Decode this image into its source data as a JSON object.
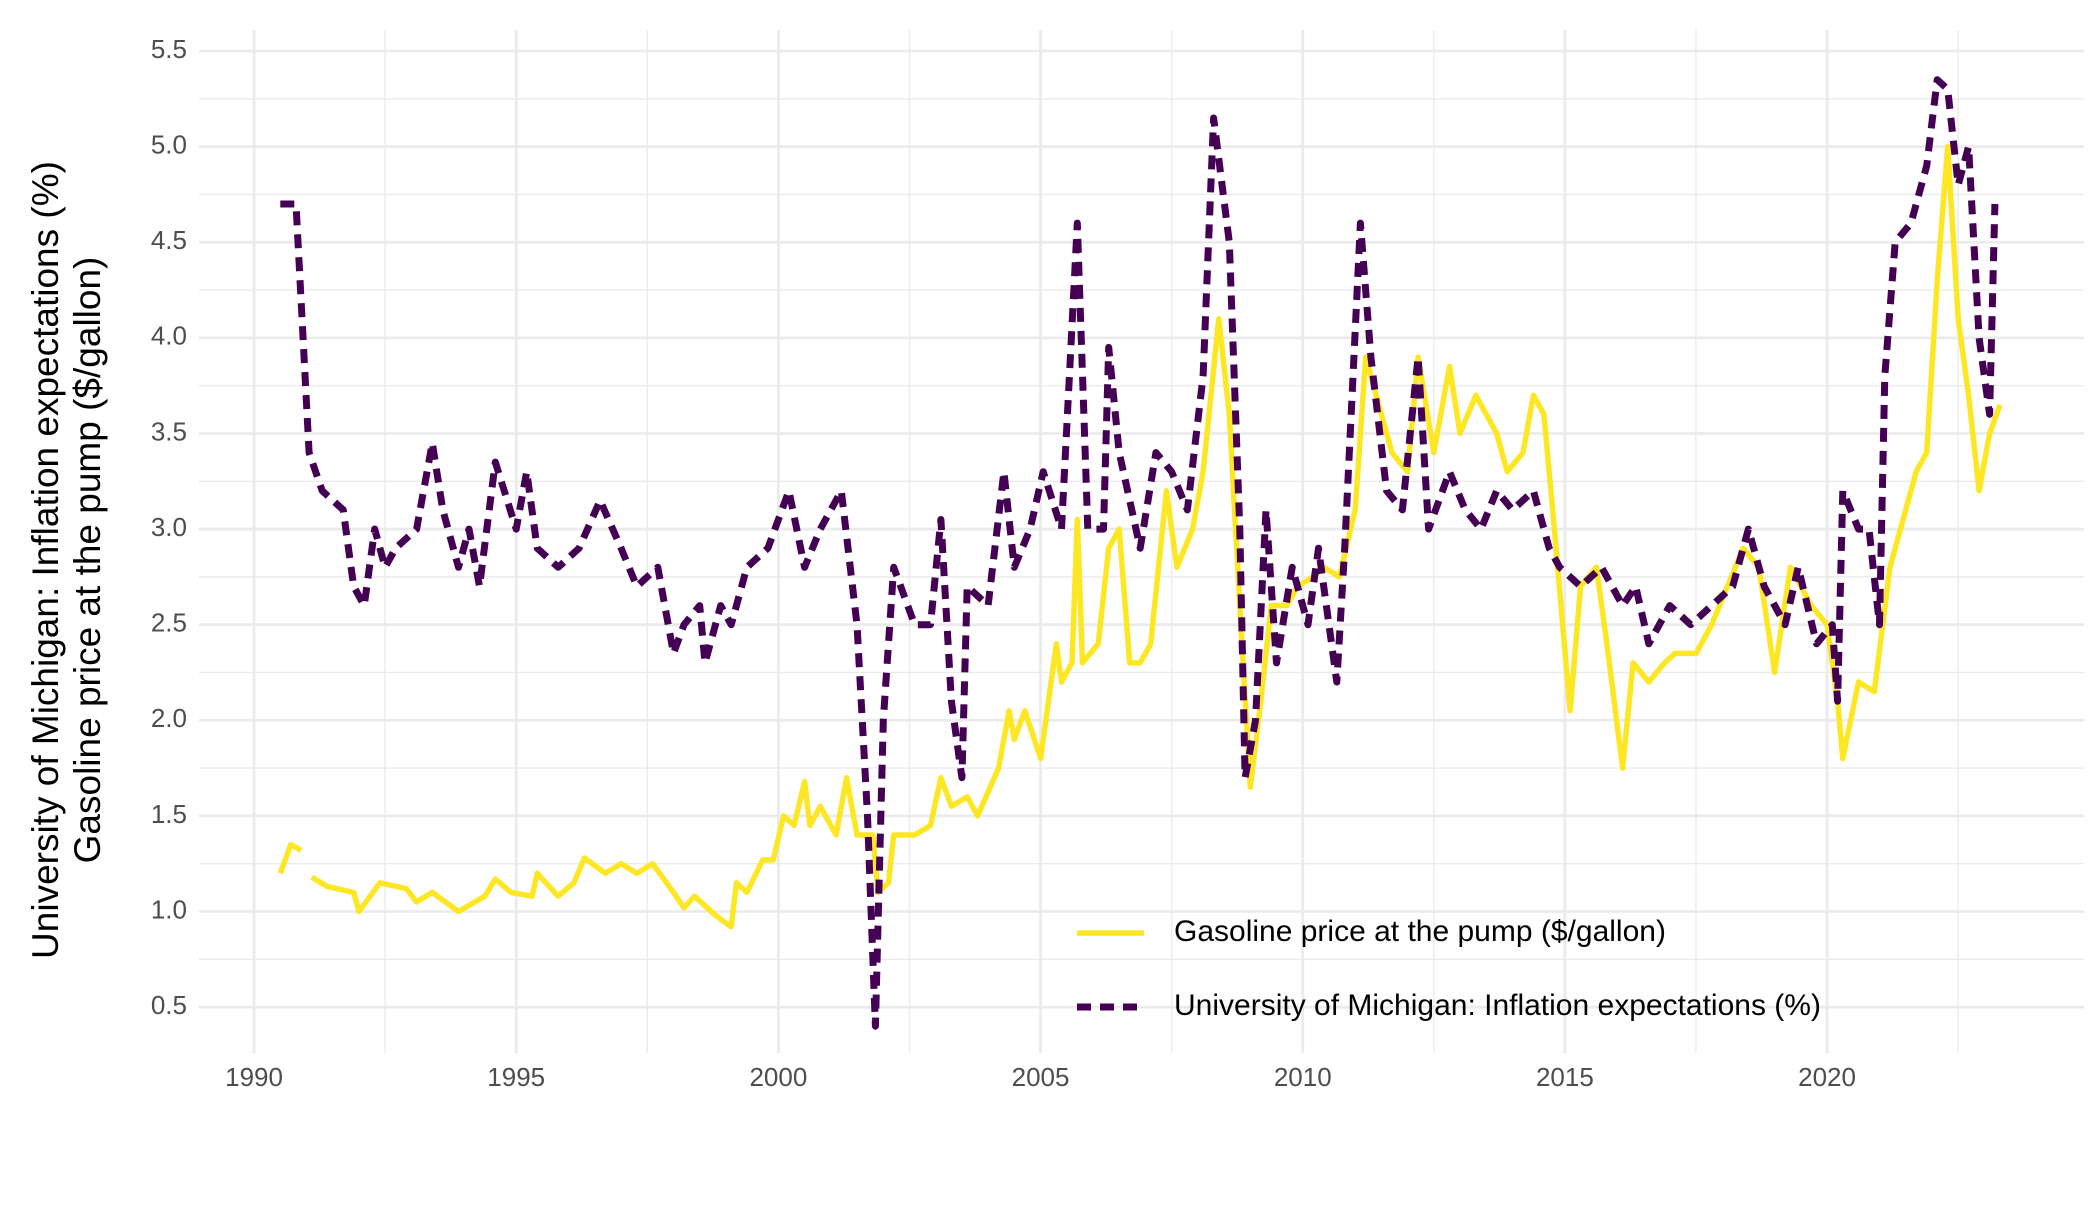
{
  "chart_data": {
    "type": "line",
    "ylabel": [
      "University of Michigan: Inflation expectations (%)",
      "Gasoline price at the pump ($/gallon)"
    ],
    "xlim": [
      1988.95,
      2024.9
    ],
    "ylim": [
      0.26,
      5.61
    ],
    "xticks": [
      1990,
      1995,
      2000,
      2005,
      2010,
      2015,
      2020
    ],
    "yticks": [
      {
        "value": 0.5,
        "label": "0.5"
      },
      {
        "value": 1,
        "label": "1.0"
      },
      {
        "value": 1.5,
        "label": "1.5"
      },
      {
        "value": 2,
        "label": "2.0"
      },
      {
        "value": 2.5,
        "label": "2.5"
      },
      {
        "value": 3,
        "label": "3.0"
      },
      {
        "value": 3.5,
        "label": "3.5"
      },
      {
        "value": 4,
        "label": "4.0"
      },
      {
        "value": 4.5,
        "label": "4.5"
      },
      {
        "value": 5,
        "label": "5.0"
      },
      {
        "value": 5.5,
        "label": "5.5"
      }
    ],
    "grid": true,
    "legend": "bottom-right",
    "series": [
      {
        "name": "Gasoline price at the pump ($/gallon)",
        "color": "#fde725",
        "dash": false,
        "x": [
          1990.5,
          1990.7,
          1990.9,
          1991.0,
          1991.1,
          1991.4,
          1991.9,
          1992.0,
          1992.4,
          1992.9,
          1993.1,
          1993.4,
          1993.9,
          1994.4,
          1994.6,
          1994.9,
          1995.3,
          1995.4,
          1995.8,
          1996.1,
          1996.3,
          1996.7,
          1997.0,
          1997.3,
          1997.6,
          1998.0,
          1998.2,
          1998.4,
          1998.8,
          1999.1,
          1999.2,
          1999.4,
          1999.7,
          1999.9,
          2000.1,
          2000.3,
          2000.5,
          2000.6,
          2000.8,
          2001.1,
          2001.3,
          2001.5,
          2001.8,
          2001.9,
          2002.1,
          2002.2,
          2002.6,
          2002.9,
          2003.1,
          2003.3,
          2003.6,
          2003.8,
          2004.2,
          2004.4,
          2004.5,
          2004.7,
          2005.0,
          2005.2,
          2005.3,
          2005.4,
          2005.6,
          2005.7,
          2005.8,
          2006.1,
          2006.3,
          2006.5,
          2006.7,
          2006.9,
          2007.1,
          2007.4,
          2007.6,
          2007.9,
          2008.1,
          2008.4,
          2008.6,
          2008.8,
          2009.0,
          2009.2,
          2009.4,
          2009.7,
          2009.9,
          2010.2,
          2010.4,
          2010.7,
          2011.0,
          2011.2,
          2011.5,
          2011.7,
          2012.0,
          2012.2,
          2012.5,
          2012.8,
          2013.0,
          2013.3,
          2013.7,
          2013.9,
          2014.2,
          2014.4,
          2014.6,
          2014.8,
          2015.1,
          2015.3,
          2015.6,
          2015.8,
          2016.1,
          2016.3,
          2016.6,
          2016.9,
          2017.1,
          2017.5,
          2017.8,
          2018.1,
          2018.4,
          2018.7,
          2019.0,
          2019.3,
          2019.7,
          2020.0,
          2020.2,
          2020.3,
          2020.6,
          2020.9,
          2021.2,
          2021.5,
          2021.7,
          2021.9,
          2022.1,
          2022.3,
          2022.5,
          2022.7,
          2022.9,
          2023.1,
          2023.3
        ],
        "values": [
          1.2,
          1.35,
          1.32,
          null,
          1.18,
          1.13,
          1.1,
          1.0,
          1.15,
          1.12,
          1.05,
          1.1,
          1.0,
          1.08,
          1.17,
          1.1,
          1.08,
          1.2,
          1.08,
          1.15,
          1.28,
          1.2,
          1.25,
          1.2,
          1.25,
          1.1,
          1.02,
          1.08,
          0.98,
          0.92,
          1.15,
          1.1,
          1.27,
          1.27,
          1.5,
          1.45,
          1.68,
          1.45,
          1.55,
          1.4,
          1.7,
          1.4,
          1.4,
          1.1,
          1.15,
          1.4,
          1.4,
          1.45,
          1.7,
          1.55,
          1.6,
          1.5,
          1.75,
          2.05,
          1.9,
          2.05,
          1.8,
          2.2,
          2.4,
          2.2,
          2.3,
          3.05,
          2.3,
          2.4,
          2.9,
          3.0,
          2.3,
          2.3,
          2.4,
          3.2,
          2.8,
          3.0,
          3.3,
          4.1,
          3.6,
          2.6,
          1.65,
          2.1,
          2.6,
          2.6,
          2.7,
          2.75,
          2.8,
          2.75,
          3.1,
          3.9,
          3.6,
          3.4,
          3.3,
          3.9,
          3.4,
          3.85,
          3.5,
          3.7,
          3.5,
          3.3,
          3.4,
          3.7,
          3.6,
          3.0,
          2.05,
          2.7,
          2.8,
          2.4,
          1.75,
          2.3,
          2.2,
          2.3,
          2.35,
          2.35,
          2.5,
          2.7,
          2.9,
          2.8,
          2.25,
          2.8,
          2.6,
          2.5,
          2.1,
          1.8,
          2.2,
          2.15,
          2.8,
          3.1,
          3.3,
          3.4,
          4.3,
          5.0,
          4.1,
          3.7,
          3.2,
          3.5,
          3.65
        ]
      },
      {
        "name": "University of Michigan: Inflation expectations (%)",
        "color": "#440154",
        "dash": true,
        "x": [
          1990.5,
          1990.8,
          1991.05,
          1991.3,
          1991.7,
          1991.9,
          1992.1,
          1992.3,
          1992.5,
          1992.7,
          1993.1,
          1993.4,
          1993.6,
          1993.9,
          1994.1,
          1994.3,
          1994.6,
          1995.0,
          1995.2,
          1995.4,
          1995.8,
          1996.2,
          1996.6,
          1997.0,
          1997.3,
          1997.7,
          1998.0,
          1998.2,
          1998.5,
          1998.6,
          1998.9,
          1999.1,
          1999.4,
          1999.8,
          2000.2,
          2000.5,
          2000.8,
          2001.2,
          2001.5,
          2001.7,
          2001.85,
          2002.0,
          2002.2,
          2002.6,
          2002.9,
          2003.1,
          2003.3,
          2003.5,
          2003.6,
          2004.0,
          2004.3,
          2004.5,
          2004.8,
          2005.05,
          2005.4,
          2005.7,
          2005.9,
          2006.2,
          2006.3,
          2006.5,
          2006.9,
          2007.2,
          2007.5,
          2007.8,
          2008.1,
          2008.3,
          2008.6,
          2008.8,
          2008.9,
          2009.1,
          2009.3,
          2009.5,
          2009.8,
          2010.1,
          2010.3,
          2010.65,
          2010.8,
          2011.1,
          2011.3,
          2011.6,
          2011.9,
          2012.2,
          2012.4,
          2012.8,
          2013.1,
          2013.4,
          2013.7,
          2014.0,
          2014.4,
          2014.7,
          2014.9,
          2015.3,
          2015.7,
          2016.1,
          2016.35,
          2016.6,
          2017.0,
          2017.4,
          2017.8,
          2018.2,
          2018.5,
          2018.8,
          2019.2,
          2019.45,
          2019.8,
          2020.1,
          2020.2,
          2020.3,
          2020.6,
          2020.8,
          2021.0,
          2021.1,
          2021.3,
          2021.6,
          2021.9,
          2022.1,
          2022.3,
          2022.5,
          2022.7,
          2022.9,
          2023.1,
          2023.2
        ],
        "values": [
          4.7,
          4.7,
          3.4,
          3.2,
          3.1,
          2.7,
          2.6,
          3.0,
          2.8,
          2.9,
          3.0,
          3.45,
          3.1,
          2.8,
          3.0,
          2.7,
          3.35,
          3.0,
          3.3,
          2.9,
          2.8,
          2.9,
          3.15,
          2.9,
          2.7,
          2.8,
          2.35,
          2.5,
          2.6,
          2.3,
          2.6,
          2.5,
          2.8,
          2.9,
          3.2,
          2.8,
          3.0,
          3.2,
          2.5,
          1.5,
          0.4,
          2.0,
          2.8,
          2.5,
          2.5,
          3.05,
          2.1,
          1.7,
          2.7,
          2.6,
          3.3,
          2.8,
          3.0,
          3.3,
          3.0,
          4.6,
          3.0,
          3.0,
          3.95,
          3.4,
          2.9,
          3.4,
          3.3,
          3.1,
          3.8,
          5.15,
          4.5,
          3.0,
          1.7,
          2.0,
          3.1,
          2.3,
          2.8,
          2.5,
          2.9,
          2.2,
          2.9,
          4.6,
          3.9,
          3.2,
          3.1,
          3.9,
          3.0,
          3.3,
          3.1,
          3.0,
          3.2,
          3.1,
          3.2,
          2.9,
          2.8,
          2.7,
          2.8,
          2.6,
          2.7,
          2.4,
          2.6,
          2.5,
          2.6,
          2.7,
          3.0,
          2.7,
          2.5,
          2.8,
          2.4,
          2.5,
          2.1,
          3.2,
          3.0,
          3.0,
          2.5,
          3.8,
          4.5,
          4.6,
          4.9,
          5.35,
          5.3,
          4.8,
          5.0,
          4.0,
          3.6,
          4.7
        ]
      }
    ]
  }
}
